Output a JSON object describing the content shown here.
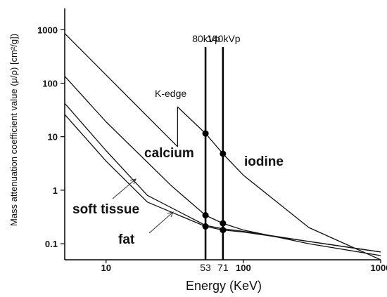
{
  "chart_data": {
    "type": "line",
    "x_scale": "log",
    "y_scale": "log",
    "xlim": [
      5,
      1000
    ],
    "ylim": [
      0.05,
      2500
    ],
    "xlabel": "Energy (KeV)",
    "ylabel": "Mass attenuation coefficient value (μ/ρ) [cm²/g])",
    "x_ticks": [
      10,
      100,
      1000
    ],
    "y_ticks": [
      0.1,
      1,
      10,
      100,
      1000
    ],
    "x_markers": [
      {
        "x": 53,
        "label": "53",
        "kvp_label": "80kVp"
      },
      {
        "x": 71,
        "label": "71",
        "kvp_label": "140kVp"
      }
    ],
    "series": [
      {
        "name": "iodine",
        "x": [
          5,
          33.2,
          33.2,
          53,
          71,
          100,
          300,
          1000
        ],
        "y": [
          850,
          6.5,
          36,
          11.5,
          4.8,
          1.9,
          0.2,
          0.05
        ]
      },
      {
        "name": "calcium",
        "x": [
          5,
          10,
          30,
          53,
          71,
          100,
          300,
          1000
        ],
        "y": [
          135,
          19,
          1.2,
          0.34,
          0.24,
          0.18,
          0.1,
          0.06
        ]
      },
      {
        "name": "soft tissue",
        "x": [
          5,
          10,
          20,
          53,
          71,
          100,
          300,
          1000
        ],
        "y": [
          42,
          5.5,
          0.8,
          0.22,
          0.19,
          0.17,
          0.11,
          0.07
        ]
      },
      {
        "name": "fat",
        "x": [
          5,
          10,
          20,
          53,
          71,
          100,
          300,
          1000
        ],
        "y": [
          26,
          3.5,
          0.6,
          0.21,
          0.18,
          0.165,
          0.11,
          0.07
        ]
      }
    ],
    "points": [
      {
        "x": 53,
        "y": 11.5
      },
      {
        "x": 71,
        "y": 4.8
      },
      {
        "x": 53,
        "y": 0.34
      },
      {
        "x": 71,
        "y": 0.24
      },
      {
        "x": 53,
        "y": 0.21
      },
      {
        "x": 71,
        "y": 0.18
      }
    ],
    "annotations": {
      "kedge": "K-edge",
      "calcium": "calcium",
      "iodine": "iodine",
      "soft_tissue": "soft tissue",
      "fat": "fat"
    }
  }
}
